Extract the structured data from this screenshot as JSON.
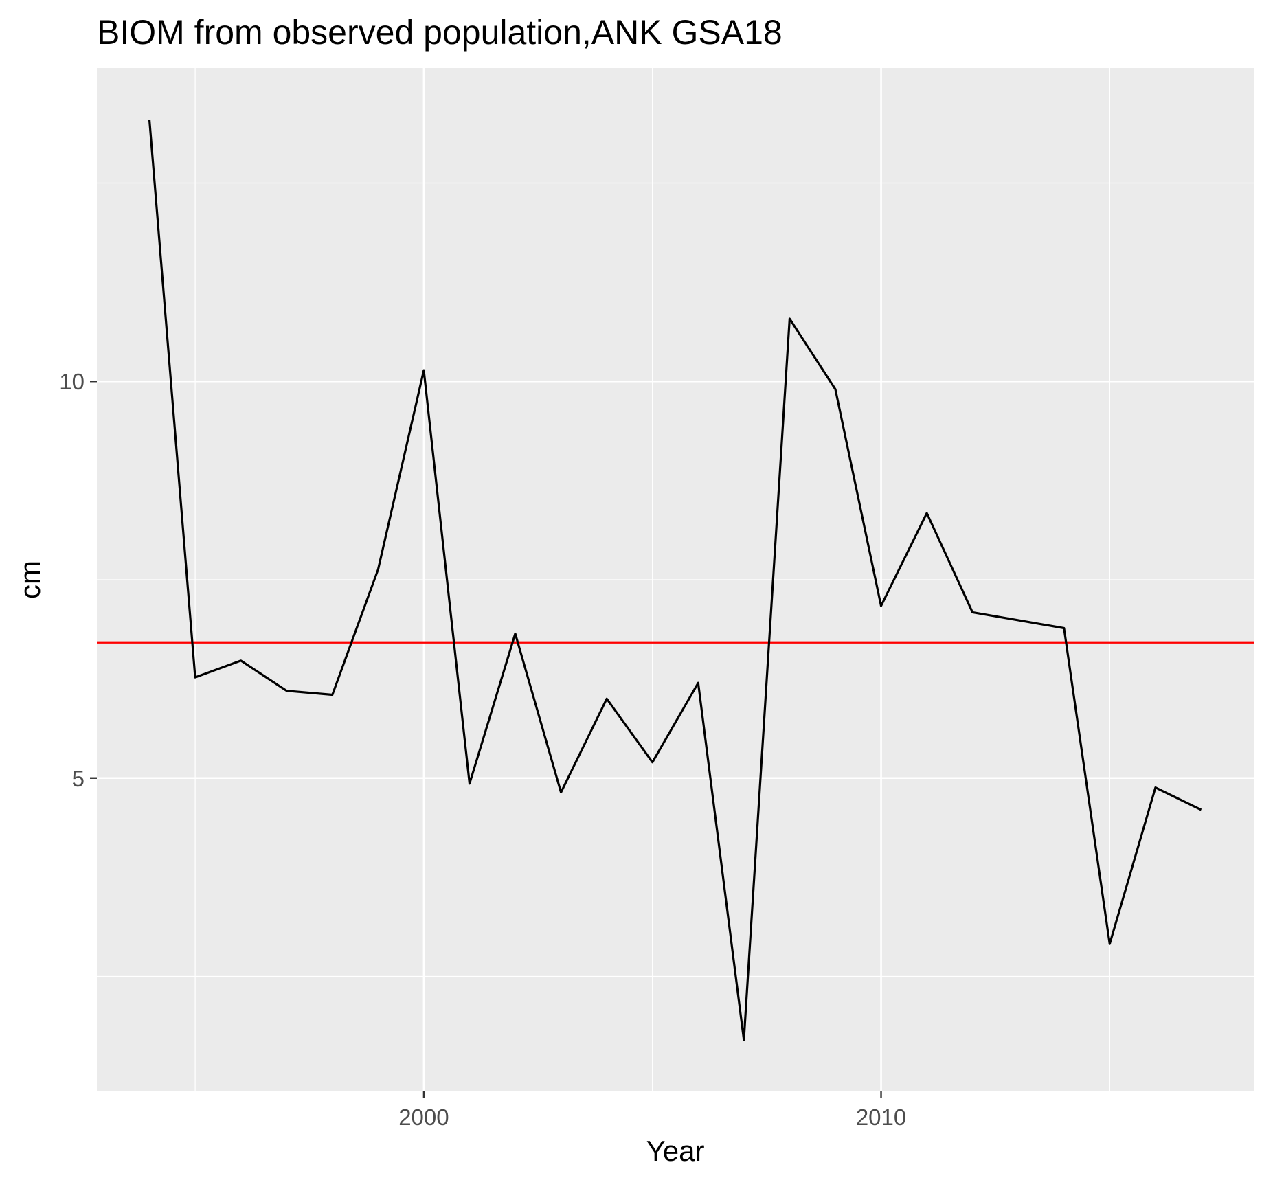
{
  "chart_data": {
    "type": "line",
    "title": "BIOM from observed population,ANK GSA18",
    "xlabel": "Year",
    "ylabel": "cm",
    "x_ticks": [
      2000,
      2010
    ],
    "y_ticks": [
      5,
      10
    ],
    "xlim": [
      1992.85,
      2018.15
    ],
    "ylim": [
      1.05,
      13.95
    ],
    "grid": true,
    "panel_background": "#ebebeb",
    "series": [
      {
        "color": "#000000",
        "x": [
          1994,
          1995,
          1996,
          1997,
          1998,
          1999,
          2000,
          2001,
          2002,
          2003,
          2004,
          2005,
          2006,
          2007,
          2008,
          2009,
          2010,
          2011,
          2012,
          2013,
          2014,
          2015,
          2016,
          2017
        ],
        "values": [
          13.3,
          6.27,
          6.48,
          6.1,
          6.05,
          7.63,
          10.14,
          4.93,
          6.82,
          4.82,
          6.0,
          5.2,
          6.2,
          1.7,
          10.79,
          9.9,
          7.17,
          8.34,
          7.09,
          6.99,
          6.89,
          2.91,
          4.88,
          4.6
        ]
      }
    ],
    "reference_line": {
      "y": 6.71,
      "color": "#ff0000"
    }
  }
}
